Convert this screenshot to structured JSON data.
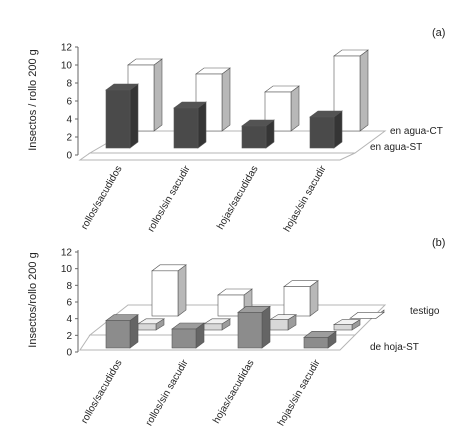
{
  "chart_data": [
    {
      "type": "bar",
      "panel_label": "(a)",
      "ylabel": "Insectos / rollo 200 g",
      "ylim": [
        0,
        12
      ],
      "yticks": [
        0,
        2,
        4,
        6,
        8,
        10,
        12
      ],
      "categories": [
        "rollos/sacudidos",
        "rollos/sin sacudir",
        "hojas/sacudidas",
        "hojas/sin sacudir"
      ],
      "series": [
        {
          "name": "en agua-ST",
          "values": [
            7.0,
            5.0,
            3.0,
            4.0
          ]
        },
        {
          "name": "en agua-CT",
          "values": [
            10.0,
            9.0,
            7.0,
            11.0
          ]
        }
      ]
    },
    {
      "type": "bar",
      "panel_label": "(b)",
      "ylabel": "Insectos/rollo 200 g",
      "ylim": [
        0,
        12
      ],
      "yticks": [
        0,
        2,
        4,
        6,
        8,
        10,
        12
      ],
      "categories": [
        "rollos/sacudidos",
        "rollos/sin sacudir",
        "hojas/sacudidas",
        "hojas/sin sacudir"
      ],
      "series": [
        {
          "name": "de hoja-ST",
          "values": [
            4.0,
            3.0,
            5.0,
            2.0
          ]
        },
        {
          "name": "",
          "values": [
            0.5,
            0.5,
            1.0,
            0.4
          ]
        },
        {
          "name": "testigo",
          "values": [
            9.5,
            6.6,
            7.6,
            3.8
          ]
        }
      ]
    }
  ],
  "colors": {
    "dark": "#4a4a4a",
    "mid": "#8c8c8c",
    "light": "#d8d8d8",
    "white": "#ffffff",
    "outline": "#555555"
  }
}
